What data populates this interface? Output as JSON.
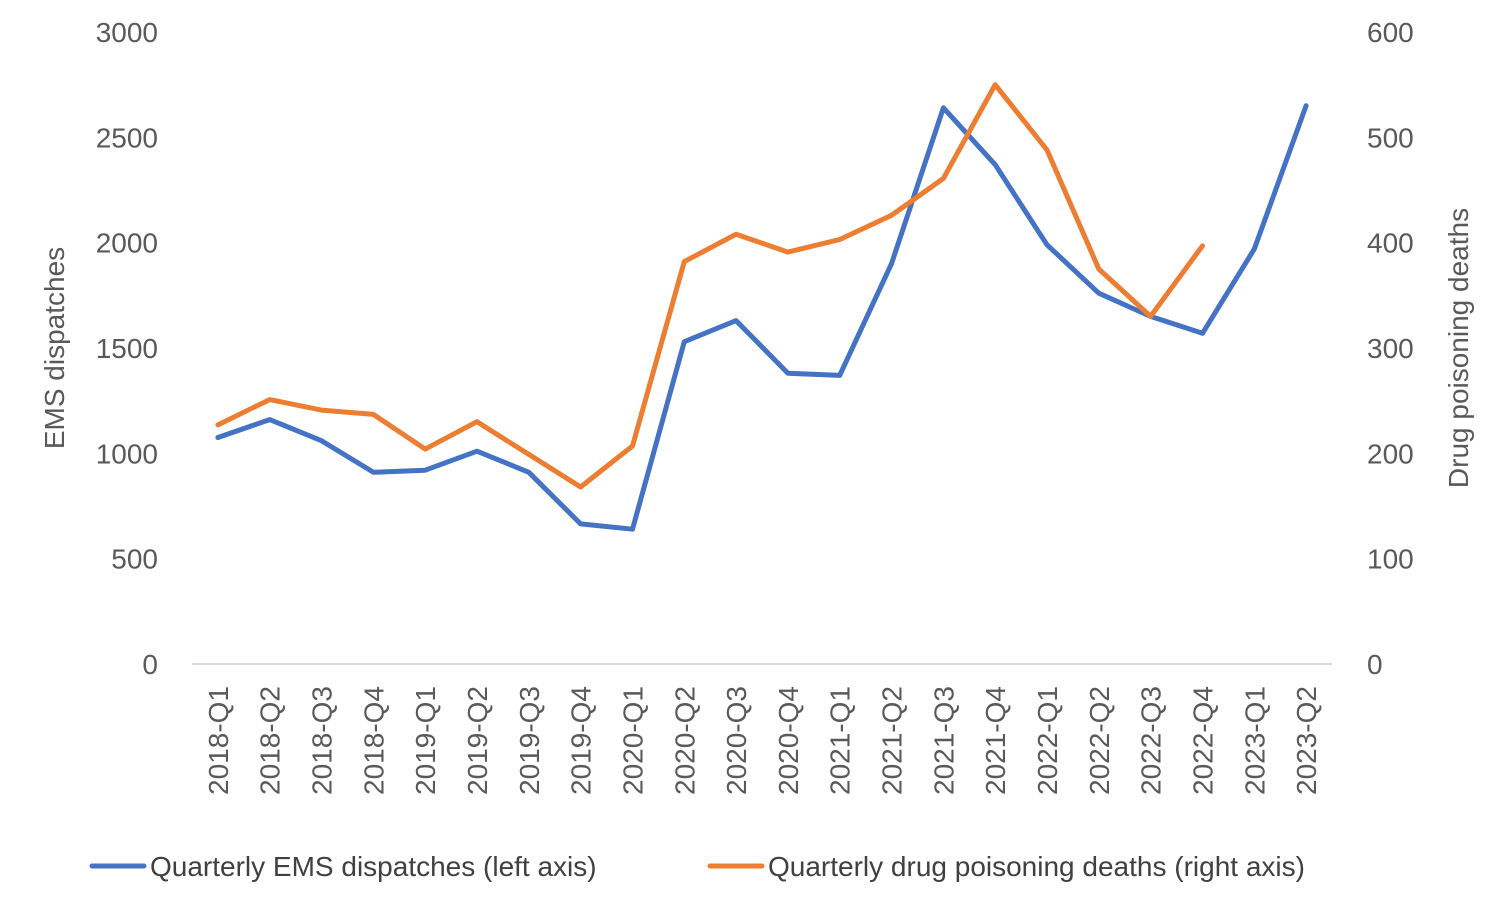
{
  "chart_data": {
    "type": "line",
    "title": "",
    "categories": [
      "2018-Q1",
      "2018-Q2",
      "2018-Q3",
      "2018-Q4",
      "2019-Q1",
      "2019-Q2",
      "2019-Q3",
      "2019-Q4",
      "2020-Q1",
      "2020-Q2",
      "2020-Q3",
      "2020-Q4",
      "2021-Q1",
      "2021-Q2",
      "2021-Q3",
      "2021-Q4",
      "2022-Q1",
      "2022-Q2",
      "2022-Q3",
      "2022-Q4",
      "2023-Q1",
      "2023-Q2"
    ],
    "left_axis": {
      "label": "EMS dispatches",
      "range": [
        0,
        3000
      ],
      "ticks": [
        "0",
        "500",
        "1000",
        "1500",
        "2000",
        "2500",
        "3000"
      ]
    },
    "right_axis": {
      "label": "Drug poisoning deaths",
      "range": [
        0,
        600
      ],
      "ticks": [
        "0",
        "100",
        "200",
        "300",
        "400",
        "500",
        "600"
      ]
    },
    "grid": false,
    "legend_position": "bottom",
    "series": [
      {
        "name": "Quarterly EMS dispatches (left axis)",
        "axis": "left",
        "color": "#4472C4",
        "values": [
          1075,
          1160,
          1060,
          910,
          920,
          1010,
          910,
          665,
          640,
          1530,
          1630,
          1380,
          1370,
          1900,
          2640,
          2370,
          1990,
          1760,
          1650,
          1570,
          1970,
          2650
        ]
      },
      {
        "name": "Quarterly drug poisoning deaths (right axis)",
        "axis": "right",
        "color": "#ED7D31",
        "values": [
          227,
          251,
          241,
          237,
          204,
          230,
          199,
          168,
          207,
          382,
          408,
          391,
          403,
          426,
          461,
          550,
          488,
          375,
          330,
          397,
          null,
          null
        ]
      }
    ]
  }
}
